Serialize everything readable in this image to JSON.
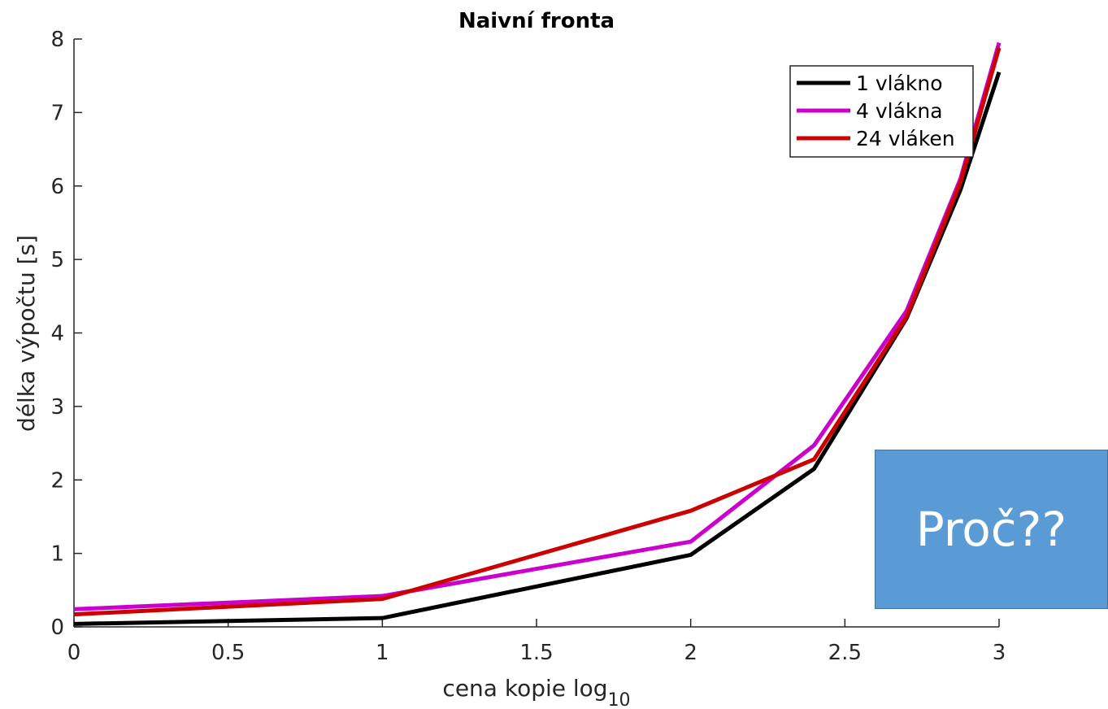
{
  "chart_data": {
    "type": "line",
    "title": "Naivní fronta",
    "xlabel": "cena kopie log",
    "xlabel_subscript": "10",
    "ylabel": "délka výpočtu [s]",
    "xlim": [
      0,
      3
    ],
    "ylim": [
      0,
      8
    ],
    "x_ticks": [
      "0",
      "0.5",
      "1",
      "1.5",
      "2",
      "2.5",
      "3"
    ],
    "y_ticks": [
      "0",
      "1",
      "2",
      "3",
      "4",
      "5",
      "6",
      "7",
      "8"
    ],
    "grid": false,
    "legend_position": "top-right",
    "x": [
      0,
      1,
      2,
      2.4,
      2.7,
      2.875,
      3
    ],
    "series": [
      {
        "name": "1 vlákno",
        "color": "#000000",
        "values": [
          0.04,
          0.12,
          0.98,
          2.15,
          4.2,
          5.95,
          7.55
        ]
      },
      {
        "name": "4 vlákna",
        "color": "#cc00cc",
        "values": [
          0.24,
          0.42,
          1.16,
          2.47,
          4.3,
          6.1,
          7.95
        ]
      },
      {
        "name": "24 vláken",
        "color": "#cc0000",
        "values": [
          0.17,
          0.38,
          1.58,
          2.28,
          4.22,
          6.05,
          7.88
        ]
      }
    ]
  },
  "callout": {
    "text": "Proč??",
    "color": "#5b9bd5"
  }
}
